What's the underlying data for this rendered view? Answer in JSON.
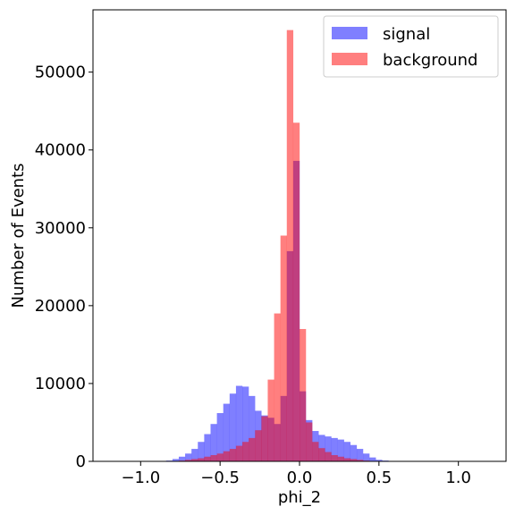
{
  "chart_data": {
    "type": "bar",
    "subtype": "overlaid-histogram",
    "xlabel": "phi_2",
    "ylabel": "Number of Events",
    "xlim": [
      -1.3,
      1.3
    ],
    "ylim": [
      0,
      58000
    ],
    "x_ticks": [
      -1.0,
      -0.5,
      0.0,
      0.5,
      1.0
    ],
    "x_tick_labels": [
      "−1.0",
      "−0.5",
      "0.0",
      "0.5",
      "1.0"
    ],
    "y_ticks": [
      0,
      10000,
      20000,
      30000,
      40000,
      50000
    ],
    "y_tick_labels": [
      "0",
      "10000",
      "20000",
      "30000",
      "40000",
      "50000"
    ],
    "bin_edges_start": -1.2,
    "bin_width": 0.04,
    "legend_position": "top-right",
    "grid": false,
    "series": [
      {
        "name": "signal",
        "color": "#0000ff",
        "opacity": 0.5,
        "values": [
          0,
          0,
          0,
          0,
          0,
          0,
          0,
          0,
          0,
          100,
          300,
          600,
          1000,
          1600,
          2500,
          3500,
          4800,
          6200,
          7400,
          8700,
          9700,
          9600,
          8400,
          6500,
          5900,
          5600,
          4800,
          8400,
          27000,
          38600,
          9000,
          5300,
          3900,
          3400,
          3200,
          3000,
          2800,
          2500,
          2100,
          1600,
          1000,
          500,
          200,
          100,
          0,
          0,
          0,
          0,
          0,
          0,
          0,
          0,
          0,
          0,
          0,
          0,
          0,
          0,
          0,
          0
        ]
      },
      {
        "name": "background",
        "color": "#ff0000",
        "opacity": 0.5,
        "values": [
          0,
          0,
          0,
          0,
          0,
          0,
          0,
          0,
          0,
          0,
          0,
          100,
          200,
          300,
          400,
          600,
          800,
          1000,
          1300,
          1600,
          2000,
          2500,
          3000,
          4000,
          5800,
          10500,
          19000,
          29000,
          55400,
          43500,
          17000,
          5000,
          2500,
          1700,
          1200,
          800,
          600,
          400,
          300,
          200,
          100,
          0,
          0,
          0,
          0,
          0,
          0,
          0,
          0,
          0,
          0,
          0,
          0,
          0,
          0,
          0,
          0,
          0,
          0,
          0
        ]
      }
    ]
  }
}
